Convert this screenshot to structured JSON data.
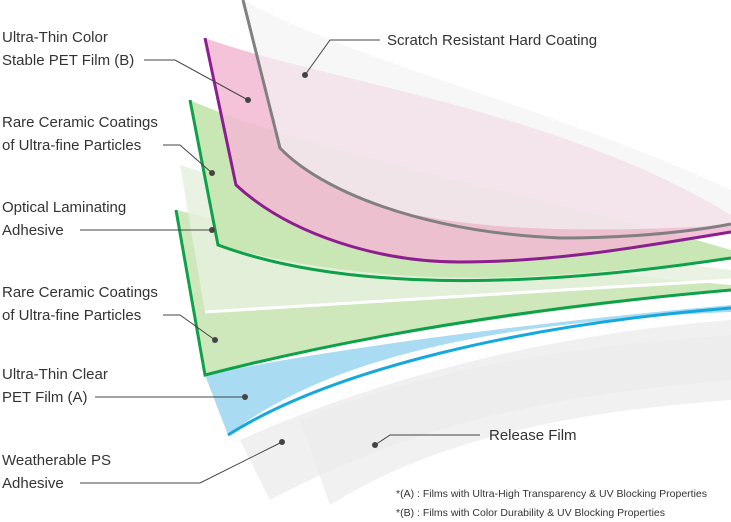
{
  "labels": {
    "ultra_thin_color": [
      "Ultra-Thin Color",
      "Stable PET Film (B)"
    ],
    "rare_ceramic_1": [
      "Rare Ceramic Coatings",
      "of Ultra-fine Particles"
    ],
    "optical_adhesive": [
      "Optical Laminating",
      "Adhesive"
    ],
    "rare_ceramic_2": [
      "Rare Ceramic Coatings",
      "of Ultra-fine Particles"
    ],
    "ultra_thin_clear": [
      "Ultra-Thin Clear",
      "PET Film (A)"
    ],
    "weatherable": [
      "Weatherable PS",
      "Adhesive"
    ],
    "scratch": "Scratch Resistant Hard Coating",
    "release": "Release Film"
  },
  "notes": {
    "a": "*(A) : Films with Ultra-High Transparency & UV Blocking Properties",
    "b": "*(B) : Films with Color Durability & UV Blocking Properties"
  },
  "colors": {
    "gray": "#808080",
    "purple": "#8b1f8f",
    "green": "#0fa04a",
    "blue": "#15a8de",
    "pink": "#f2b8d4",
    "lightgreen": "#c9e6b5",
    "lightblue": "#a9dcf2"
  }
}
